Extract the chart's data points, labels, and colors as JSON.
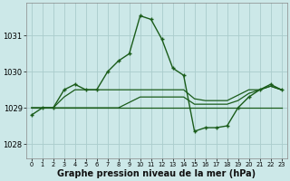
{
  "background_color": "#cce8e8",
  "grid_color": "#aacccc",
  "line_color": "#1a5c1a",
  "xlabel": "Graphe pression niveau de la mer (hPa)",
  "xlabel_fontsize": 7,
  "ytick_values": [
    1028,
    1029,
    1030,
    1031
  ],
  "ylim": [
    1027.6,
    1031.9
  ],
  "xlim": [
    -0.5,
    23.5
  ],
  "series1_x": [
    0,
    1,
    2,
    3,
    4,
    5,
    6,
    7,
    8,
    9,
    10,
    11,
    12,
    13,
    14,
    15,
    16,
    17,
    18,
    19,
    20,
    21,
    22,
    23
  ],
  "series1_y": [
    1028.8,
    1029.0,
    1029.0,
    1029.5,
    1029.65,
    1029.5,
    1029.5,
    1030.0,
    1030.3,
    1030.5,
    1031.55,
    1031.45,
    1030.9,
    1030.1,
    1029.9,
    1028.35,
    1028.45,
    1028.45,
    1028.5,
    1029.0,
    1029.3,
    1029.5,
    1029.65,
    1029.5
  ],
  "series2_x": [
    0,
    1,
    2,
    3,
    4,
    5,
    6,
    7,
    8,
    9,
    10,
    11,
    12,
    13,
    14,
    15,
    16,
    17,
    18,
    19,
    20,
    21,
    22,
    23
  ],
  "series2_y": [
    1029.0,
    1029.0,
    1029.0,
    1029.0,
    1029.0,
    1029.0,
    1029.0,
    1029.0,
    1029.0,
    1029.0,
    1029.0,
    1029.0,
    1029.0,
    1029.0,
    1029.0,
    1029.0,
    1029.0,
    1029.0,
    1029.0,
    1029.0,
    1029.0,
    1029.0,
    1029.0,
    1029.0
  ],
  "series3_x": [
    0,
    1,
    2,
    3,
    4,
    5,
    6,
    7,
    8,
    9,
    10,
    11,
    12,
    13,
    14,
    15,
    16,
    17,
    18,
    19,
    20,
    21,
    22,
    23
  ],
  "series3_y": [
    1029.0,
    1029.0,
    1029.0,
    1029.3,
    1029.5,
    1029.5,
    1029.5,
    1029.5,
    1029.5,
    1029.5,
    1029.5,
    1029.5,
    1029.5,
    1029.5,
    1029.5,
    1029.25,
    1029.2,
    1029.2,
    1029.2,
    1029.35,
    1029.5,
    1029.5,
    1029.6,
    1029.5
  ],
  "series4_x": [
    0,
    1,
    2,
    3,
    4,
    5,
    6,
    7,
    8,
    9,
    10,
    11,
    12,
    13,
    14,
    15,
    16,
    17,
    18,
    19,
    20,
    21,
    22,
    23
  ],
  "series4_y": [
    1029.0,
    1029.0,
    1029.0,
    1029.0,
    1029.0,
    1029.0,
    1029.0,
    1029.0,
    1029.0,
    1029.15,
    1029.3,
    1029.3,
    1029.3,
    1029.3,
    1029.3,
    1029.1,
    1029.1,
    1029.1,
    1029.1,
    1029.2,
    1029.4,
    1029.5,
    1029.6,
    1029.5
  ]
}
